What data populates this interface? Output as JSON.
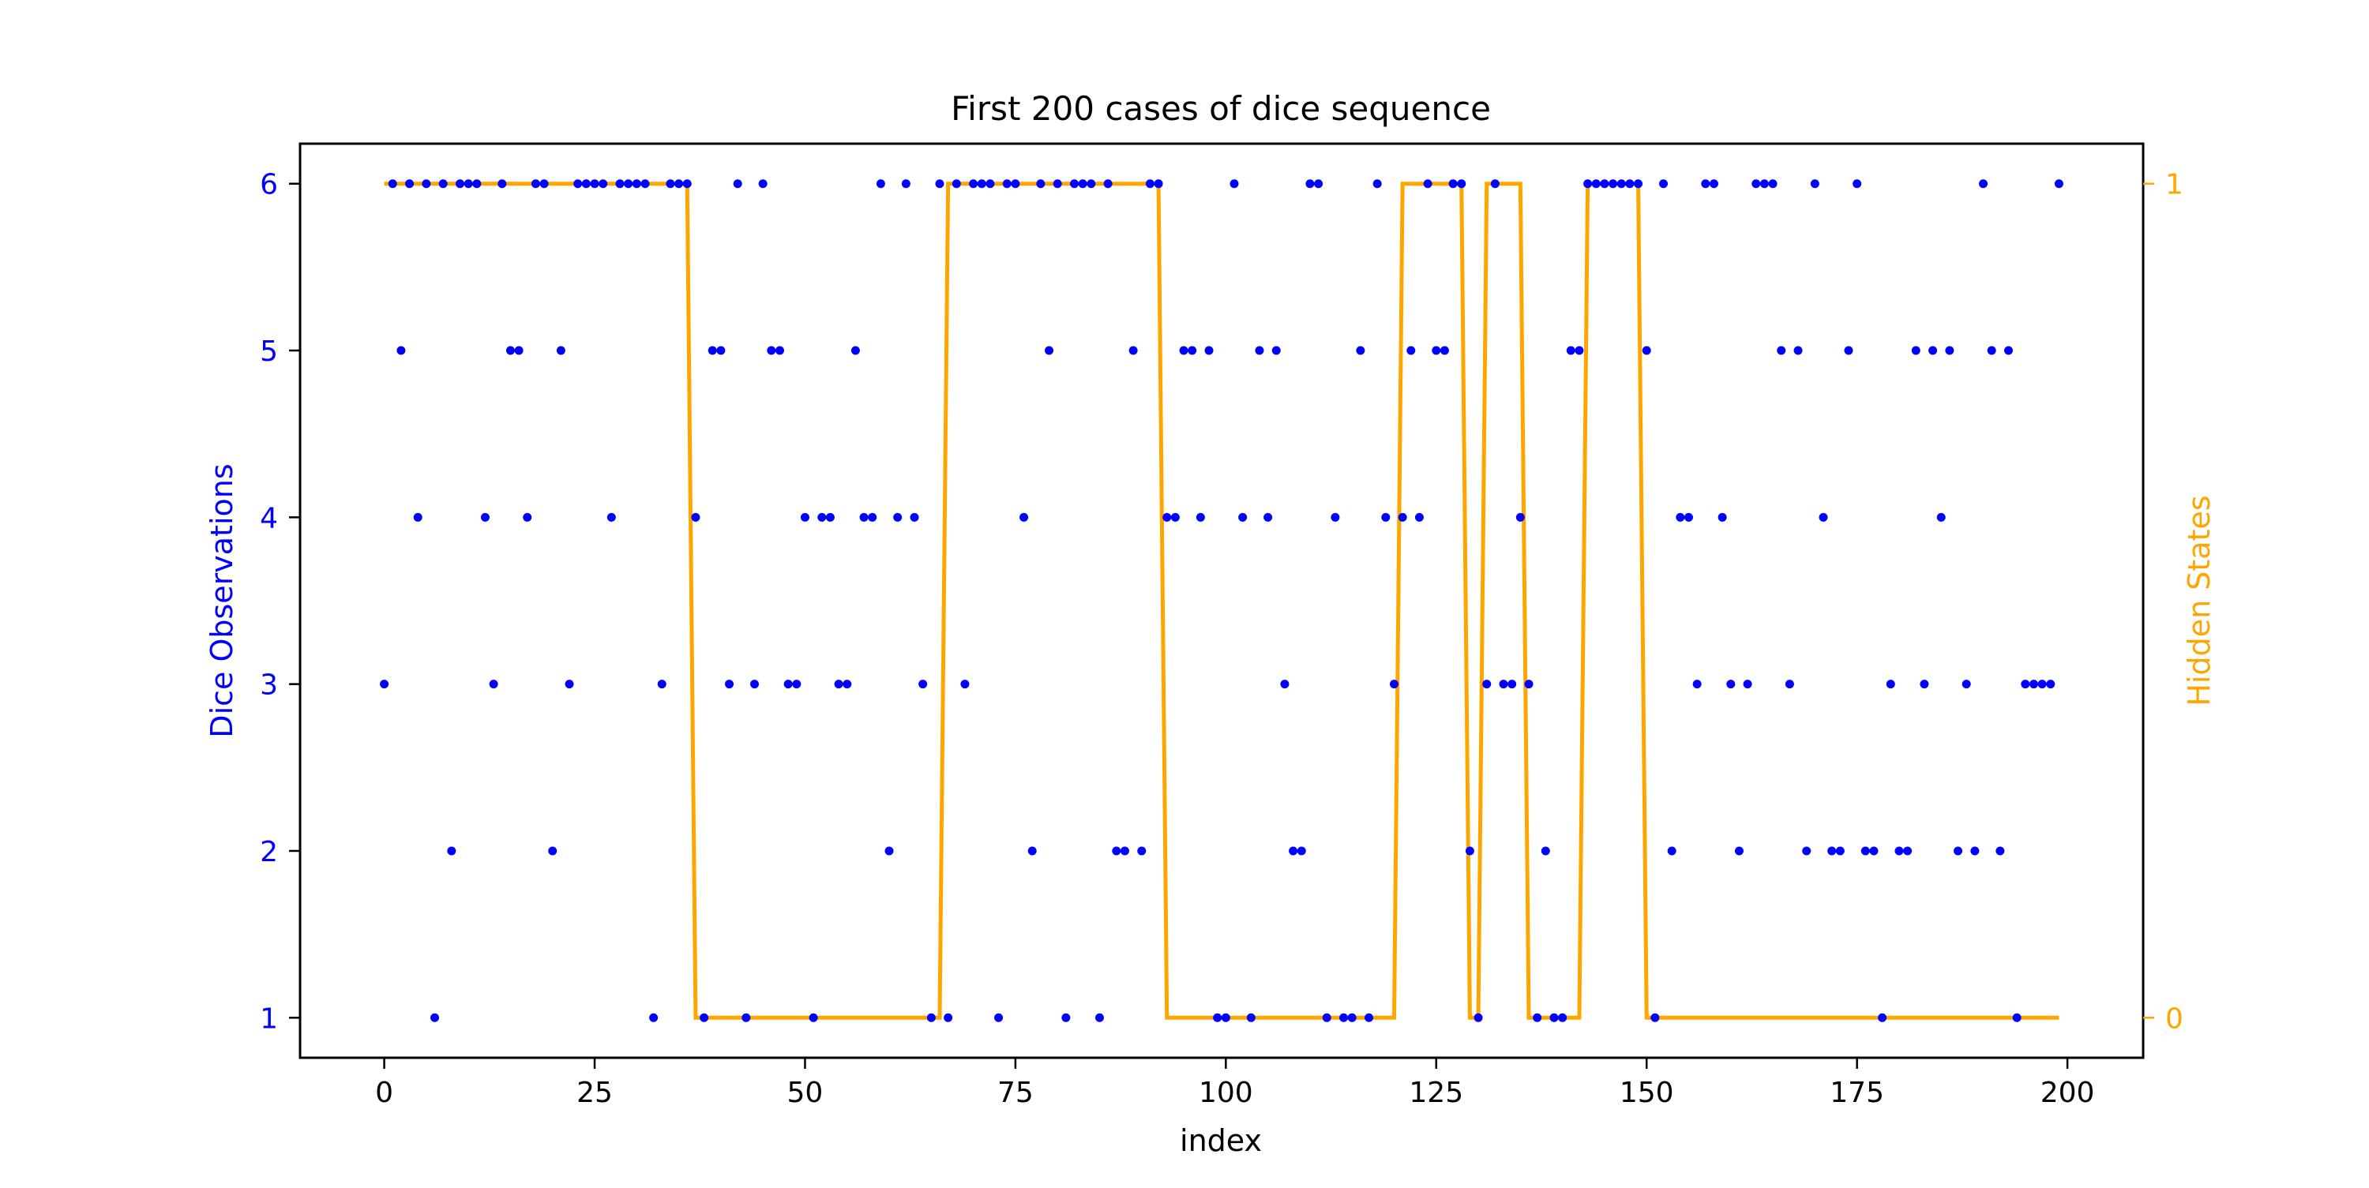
{
  "chart_data": {
    "type": "scatter+step",
    "title": "First 200 cases of dice sequence",
    "xlabel": "index",
    "ylabel_left": "Dice Observations",
    "ylabel_right": "Hidden States",
    "xlim": [
      -10,
      209
    ],
    "ylim_left": [
      0.76,
      6.24
    ],
    "ylim_right": [
      -0.048,
      1.048
    ],
    "x_ticks": [
      0,
      25,
      50,
      75,
      100,
      125,
      150,
      175,
      200
    ],
    "y_ticks_left": [
      1,
      2,
      3,
      4,
      5,
      6
    ],
    "y_ticks_right": [
      0,
      1
    ],
    "colors": {
      "observations": "#0000ff",
      "states": "#ffa500",
      "axes": "#000000"
    },
    "series": [
      {
        "role": "observations",
        "axis": "left",
        "x": [
          0,
          1,
          2,
          3,
          4,
          5,
          6,
          7,
          8,
          9,
          10,
          11,
          12,
          13,
          14,
          15,
          16,
          17,
          18,
          19,
          20,
          21,
          22,
          23,
          24,
          25,
          26,
          27,
          28,
          29,
          30,
          31,
          32,
          33,
          34,
          35,
          36,
          37,
          38,
          39,
          40,
          41,
          42,
          43,
          44,
          45,
          46,
          47,
          48,
          49,
          50,
          51,
          52,
          53,
          54,
          55,
          56,
          57,
          58,
          59,
          60,
          61,
          62,
          63,
          64,
          65,
          66,
          67,
          68,
          69,
          70,
          71,
          72,
          73,
          74,
          75,
          76,
          77,
          78,
          79,
          80,
          81,
          82,
          83,
          84,
          85,
          86,
          87,
          88,
          89,
          90,
          91,
          92,
          93,
          94,
          95,
          96,
          97,
          98,
          99,
          100,
          101,
          102,
          103,
          104,
          105,
          106,
          107,
          108,
          109,
          110,
          111,
          112,
          113,
          114,
          115,
          116,
          117,
          118,
          119,
          120,
          121,
          122,
          123,
          124,
          125,
          126,
          127,
          128,
          129,
          130,
          131,
          132,
          133,
          134,
          135,
          136,
          137,
          138,
          139,
          140,
          141,
          142,
          143,
          144,
          145,
          146,
          147,
          148,
          149,
          150,
          151,
          152,
          153,
          154,
          155,
          156,
          157,
          158,
          159,
          160,
          161,
          162,
          163,
          164,
          165,
          166,
          167,
          168,
          169,
          170,
          171,
          172,
          173,
          174,
          175,
          176,
          177,
          178,
          179,
          180,
          181,
          182,
          183,
          184,
          185,
          186,
          187,
          188,
          189,
          190,
          191,
          192,
          193,
          194,
          195,
          196,
          197,
          198,
          199
        ],
        "y": [
          3,
          6,
          5,
          6,
          4,
          6,
          1,
          6,
          2,
          6,
          6,
          6,
          4,
          3,
          6,
          5,
          5,
          4,
          6,
          6,
          2,
          5,
          3,
          6,
          6,
          6,
          6,
          4,
          6,
          6,
          6,
          6,
          1,
          3,
          6,
          6,
          6,
          4,
          1,
          5,
          5,
          3,
          6,
          1,
          3,
          6,
          5,
          5,
          3,
          3,
          4,
          1,
          4,
          4,
          3,
          3,
          5,
          4,
          4,
          6,
          2,
          4,
          6,
          4,
          3,
          1,
          6,
          1,
          6,
          3,
          6,
          6,
          6,
          1,
          6,
          6,
          4,
          2,
          6,
          5,
          6,
          1,
          6,
          6,
          6,
          1,
          6,
          2,
          2,
          5,
          2,
          6,
          6,
          4,
          4,
          5,
          5,
          4,
          5,
          1,
          1,
          6,
          4,
          1,
          5,
          4,
          5,
          3,
          2,
          2,
          6,
          6,
          1,
          4,
          1,
          1,
          5,
          1,
          6,
          4,
          3,
          4,
          5,
          4,
          6,
          5,
          5,
          6,
          6,
          2,
          1,
          3,
          6,
          3,
          3,
          4,
          3,
          1,
          2,
          1,
          1,
          5,
          5,
          6,
          6,
          6,
          6,
          6,
          6,
          6,
          5,
          1,
          6,
          2,
          4,
          4,
          3,
          6,
          6,
          4,
          3,
          2,
          3,
          6,
          6,
          6,
          5,
          3,
          5,
          2,
          6,
          4,
          2,
          2,
          5,
          6,
          2,
          2,
          1,
          3,
          2,
          2,
          5,
          3,
          5,
          4,
          5,
          2,
          3,
          2,
          6,
          5,
          2,
          5,
          1,
          3,
          3,
          3,
          3,
          6
        ]
      },
      {
        "role": "states",
        "axis": "right",
        "runs": [
          {
            "start": 0,
            "end": 36,
            "value": 1
          },
          {
            "start": 37,
            "end": 66,
            "value": 0
          },
          {
            "start": 67,
            "end": 92,
            "value": 1
          },
          {
            "start": 93,
            "end": 120,
            "value": 0
          },
          {
            "start": 121,
            "end": 128,
            "value": 1
          },
          {
            "start": 129,
            "end": 130,
            "value": 0
          },
          {
            "start": 131,
            "end": 135,
            "value": 1
          },
          {
            "start": 136,
            "end": 142,
            "value": 0
          },
          {
            "start": 143,
            "end": 149,
            "value": 1
          },
          {
            "start": 150,
            "end": 199,
            "value": 0
          }
        ]
      }
    ]
  }
}
